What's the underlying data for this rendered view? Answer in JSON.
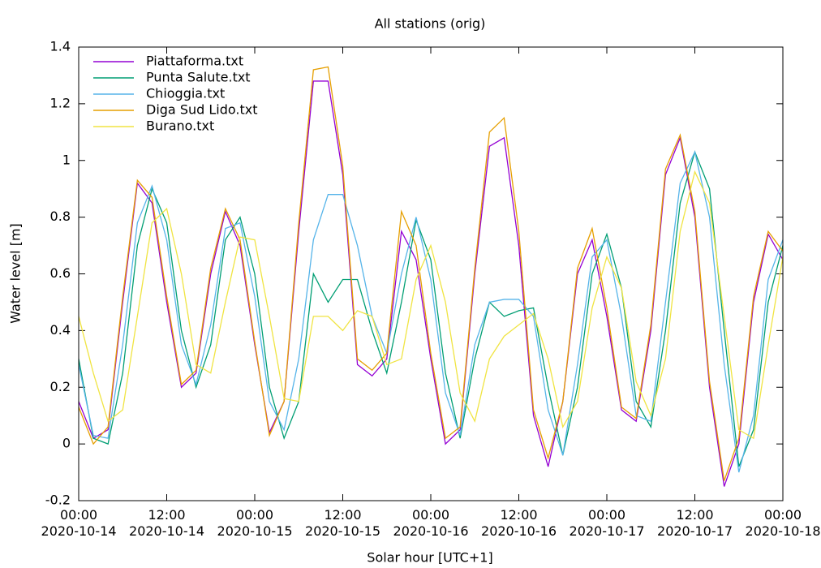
{
  "chart_data": {
    "type": "line",
    "title": "All stations (orig)",
    "xlabel": "Solar hour [UTC+1]",
    "ylabel": "Water level [m]",
    "x": [
      "2020-10-14 00:00",
      "2020-10-14 02:00",
      "2020-10-14 04:00",
      "2020-10-14 06:00",
      "2020-10-14 08:00",
      "2020-10-14 10:00",
      "2020-10-14 12:00",
      "2020-10-14 14:00",
      "2020-10-14 16:00",
      "2020-10-14 18:00",
      "2020-10-14 20:00",
      "2020-10-14 22:00",
      "2020-10-15 00:00",
      "2020-10-15 02:00",
      "2020-10-15 04:00",
      "2020-10-15 06:00",
      "2020-10-15 08:00",
      "2020-10-15 10:00",
      "2020-10-15 12:00",
      "2020-10-15 14:00",
      "2020-10-15 16:00",
      "2020-10-15 18:00",
      "2020-10-15 20:00",
      "2020-10-15 22:00",
      "2020-10-16 00:00",
      "2020-10-16 02:00",
      "2020-10-16 04:00",
      "2020-10-16 06:00",
      "2020-10-16 08:00",
      "2020-10-16 10:00",
      "2020-10-16 12:00",
      "2020-10-16 14:00",
      "2020-10-16 16:00",
      "2020-10-16 18:00",
      "2020-10-16 20:00",
      "2020-10-16 22:00",
      "2020-10-17 00:00",
      "2020-10-17 02:00",
      "2020-10-17 04:00",
      "2020-10-17 06:00",
      "2020-10-17 08:00",
      "2020-10-17 10:00",
      "2020-10-17 12:00",
      "2020-10-17 14:00",
      "2020-10-17 16:00",
      "2020-10-17 18:00",
      "2020-10-17 20:00",
      "2020-10-17 22:00",
      "2020-10-18 00:00"
    ],
    "series": [
      {
        "name": "Piattaforma.txt",
        "color": "#9400d3",
        "values": [
          0.15,
          0.02,
          0.05,
          0.5,
          0.92,
          0.85,
          0.5,
          0.2,
          0.25,
          0.6,
          0.82,
          0.7,
          0.35,
          0.04,
          0.15,
          0.75,
          1.28,
          1.28,
          0.95,
          0.28,
          0.24,
          0.3,
          0.75,
          0.65,
          0.3,
          0.0,
          0.05,
          0.6,
          1.05,
          1.08,
          0.7,
          0.1,
          -0.08,
          0.15,
          0.6,
          0.72,
          0.45,
          0.12,
          0.08,
          0.4,
          0.95,
          1.08,
          0.8,
          0.2,
          -0.15,
          0.0,
          0.5,
          0.74,
          0.65
        ]
      },
      {
        "name": "Punta Salute.txt",
        "color": "#009e73",
        "values": [
          0.3,
          0.02,
          0.0,
          0.25,
          0.7,
          0.9,
          0.78,
          0.4,
          0.2,
          0.35,
          0.72,
          0.8,
          0.6,
          0.2,
          0.02,
          0.15,
          0.6,
          0.5,
          0.58,
          0.58,
          0.4,
          0.25,
          0.5,
          0.79,
          0.65,
          0.25,
          0.02,
          0.3,
          0.5,
          0.45,
          0.47,
          0.48,
          0.2,
          -0.04,
          0.2,
          0.6,
          0.74,
          0.55,
          0.15,
          0.06,
          0.4,
          0.85,
          1.03,
          0.9,
          0.4,
          -0.08,
          0.05,
          0.5,
          0.7
        ]
      },
      {
        "name": "Chioggia.txt",
        "color": "#56b4e9",
        "values": [
          0.28,
          0.03,
          0.02,
          0.35,
          0.78,
          0.91,
          0.72,
          0.35,
          0.21,
          0.42,
          0.76,
          0.78,
          0.52,
          0.15,
          0.05,
          0.3,
          0.72,
          0.88,
          0.88,
          0.7,
          0.45,
          0.32,
          0.6,
          0.8,
          0.58,
          0.18,
          0.03,
          0.35,
          0.5,
          0.51,
          0.51,
          0.45,
          0.12,
          -0.04,
          0.28,
          0.66,
          0.72,
          0.45,
          0.1,
          0.08,
          0.5,
          0.92,
          1.03,
          0.8,
          0.28,
          -0.1,
          0.1,
          0.58,
          0.72
        ]
      },
      {
        "name": "Diga Sud Lido.txt",
        "color": "#e69f00",
        "values": [
          0.13,
          0.0,
          0.06,
          0.52,
          0.93,
          0.87,
          0.52,
          0.21,
          0.26,
          0.62,
          0.83,
          0.72,
          0.36,
          0.03,
          0.15,
          0.78,
          1.32,
          1.33,
          0.98,
          0.3,
          0.26,
          0.32,
          0.82,
          0.7,
          0.32,
          0.02,
          0.06,
          0.62,
          1.1,
          1.15,
          0.75,
          0.12,
          -0.05,
          0.15,
          0.62,
          0.76,
          0.48,
          0.13,
          0.09,
          0.42,
          0.97,
          1.09,
          0.82,
          0.22,
          -0.13,
          0.02,
          0.52,
          0.75,
          0.68
        ]
      },
      {
        "name": "Burano.txt",
        "color": "#f0e442",
        "values": [
          0.45,
          0.25,
          0.08,
          0.12,
          0.45,
          0.78,
          0.83,
          0.6,
          0.28,
          0.25,
          0.5,
          0.73,
          0.72,
          0.45,
          0.16,
          0.15,
          0.45,
          0.45,
          0.4,
          0.47,
          0.45,
          0.28,
          0.3,
          0.58,
          0.7,
          0.5,
          0.18,
          0.08,
          0.3,
          0.38,
          0.42,
          0.46,
          0.3,
          0.06,
          0.15,
          0.48,
          0.66,
          0.55,
          0.22,
          0.1,
          0.3,
          0.75,
          0.96,
          0.85,
          0.45,
          0.05,
          0.02,
          0.35,
          0.66
        ]
      }
    ],
    "xlim": [
      "2020-10-14 00:00",
      "2020-10-18 00:00"
    ],
    "xticks": [
      {
        "value": "2020-10-14 00:00",
        "label": "00:00\n2020-10-14"
      },
      {
        "value": "2020-10-14 12:00",
        "label": "12:00\n2020-10-14"
      },
      {
        "value": "2020-10-15 00:00",
        "label": "00:00\n2020-10-15"
      },
      {
        "value": "2020-10-15 12:00",
        "label": "12:00\n2020-10-15"
      },
      {
        "value": "2020-10-16 00:00",
        "label": "00:00\n2020-10-16"
      },
      {
        "value": "2020-10-16 12:00",
        "label": "12:00\n2020-10-16"
      },
      {
        "value": "2020-10-17 00:00",
        "label": "00:00\n2020-10-17"
      },
      {
        "value": "2020-10-17 12:00",
        "label": "12:00\n2020-10-17"
      },
      {
        "value": "2020-10-18 00:00",
        "label": "00:00\n2020-10-18"
      }
    ],
    "ylim": [
      -0.2,
      1.4
    ],
    "yticks": [
      -0.2,
      0,
      0.2,
      0.4,
      0.6,
      0.8,
      1,
      1.2,
      1.4
    ],
    "grid": false,
    "legend": "upper left"
  }
}
